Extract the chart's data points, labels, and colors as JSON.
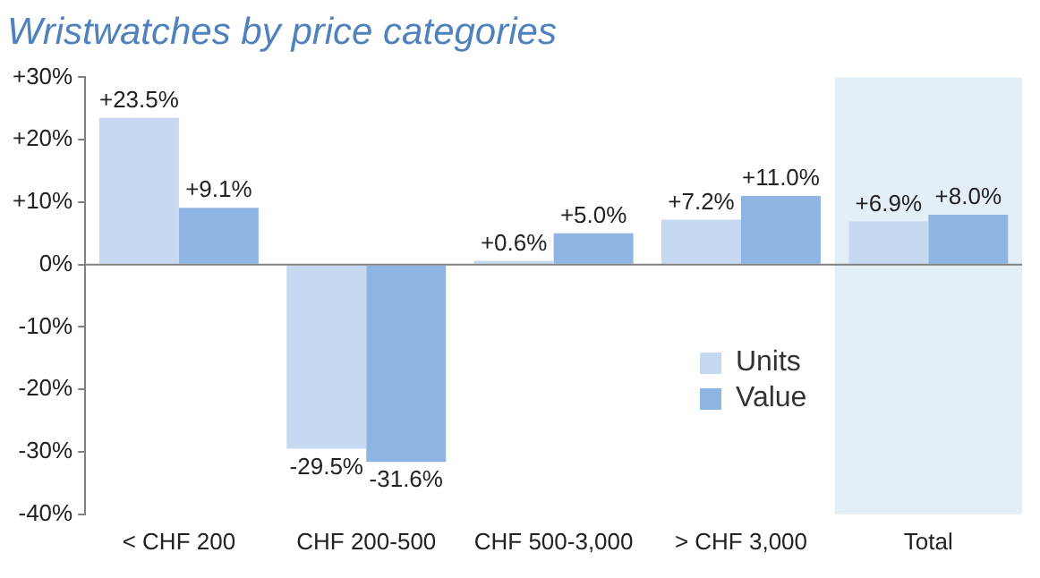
{
  "chart_data": {
    "type": "bar",
    "title": "Wristwatches by price categories",
    "categories": [
      "< CHF 200",
      "CHF 200-500",
      "CHF 500-3,000",
      "> CHF 3,000",
      "Total"
    ],
    "series": [
      {
        "name": "Units",
        "color": "#c6d9f1",
        "values": [
          23.5,
          -29.5,
          0.6,
          7.2,
          6.9
        ],
        "value_labels": [
          "+23.5%",
          "-29.5%",
          "+0.6%",
          "+7.2%",
          "+6.9%"
        ]
      },
      {
        "name": "Value",
        "color": "#8eb4e3",
        "values": [
          9.1,
          -31.6,
          5.0,
          11.0,
          8.0
        ],
        "value_labels": [
          "+9.1%",
          "-31.6%",
          "+5.0%",
          "+11.0%",
          "+8.0%"
        ]
      }
    ],
    "ylim": [
      -40,
      30
    ],
    "yticks": [
      {
        "value": -40,
        "label": "-40%"
      },
      {
        "value": -30,
        "label": "-30%"
      },
      {
        "value": -20,
        "label": "-20%"
      },
      {
        "value": -10,
        "label": "-10%"
      },
      {
        "value": 0,
        "label": "0%"
      },
      {
        "value": 10,
        "label": "+10%"
      },
      {
        "value": 20,
        "label": "+20%"
      },
      {
        "value": 30,
        "label": "+30%"
      }
    ],
    "bands": [
      {
        "axis": "x",
        "from": "Total",
        "to": "Total",
        "color": "#e3eff6"
      }
    ],
    "ref_lines": [
      {
        "axis": "y",
        "value": 0,
        "color": "#808080"
      }
    ],
    "grid": false,
    "legend": "bottom right"
  }
}
